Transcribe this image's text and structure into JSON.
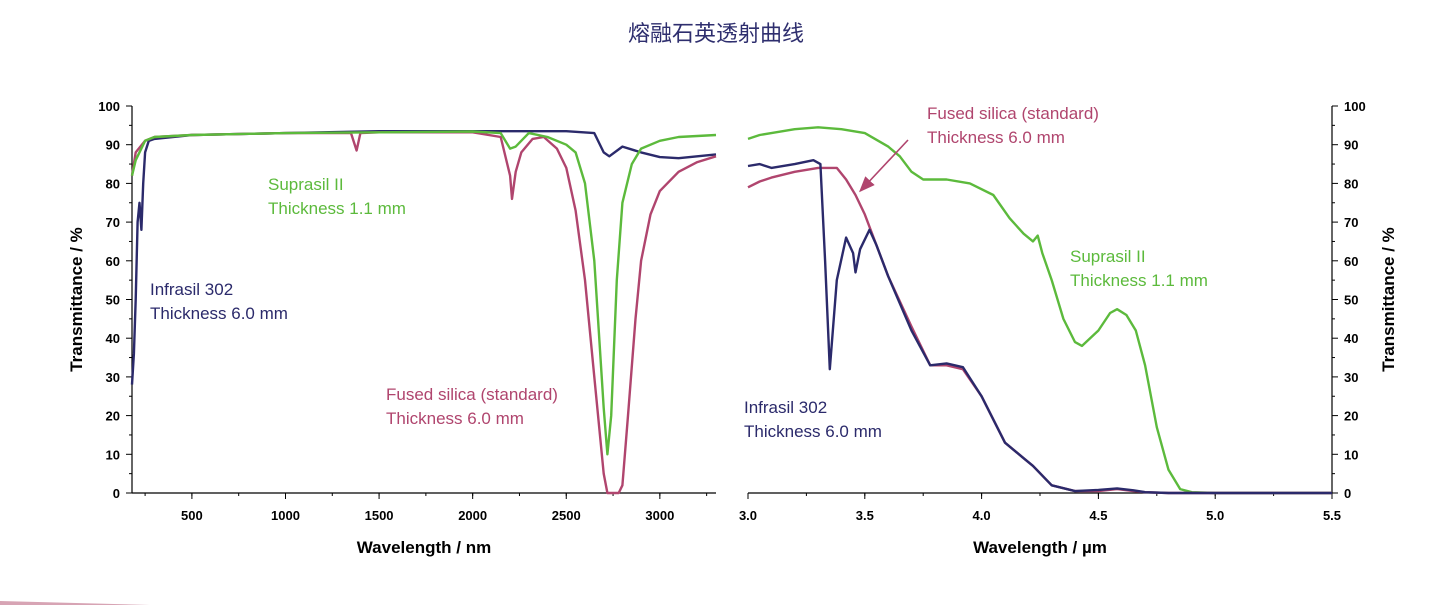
{
  "page": {
    "title": "熔融石英透射曲线"
  },
  "colors": {
    "infrasil": "#2b2a6b",
    "fused": "#b0456e",
    "suprasil": "#5cba3c",
    "decor": "#d7a4b4"
  },
  "chart_data": [
    {
      "type": "line",
      "xlabel": "Wavelength / nm",
      "ylabel": "Transmittance / %",
      "xlim": [
        180,
        3300
      ],
      "ylim": [
        0,
        100
      ],
      "xticks": [
        "500",
        "1000",
        "1500",
        "2000",
        "2500",
        "3000"
      ],
      "yticks": [
        "0",
        "10",
        "20",
        "30",
        "40",
        "50",
        "60",
        "70",
        "80",
        "90",
        "100"
      ],
      "grid": false,
      "series": [
        {
          "name": "Infrasil 302",
          "label": "Thickness 6.0 mm",
          "color": "#2b2a6b",
          "points": [
            [
              180,
              28
            ],
            [
              190,
              36
            ],
            [
              200,
              50
            ],
            [
              210,
              70
            ],
            [
              220,
              75
            ],
            [
              230,
              68
            ],
            [
              240,
              80
            ],
            [
              250,
              88
            ],
            [
              270,
              91
            ],
            [
              300,
              91.5
            ],
            [
              500,
              92.5
            ],
            [
              1000,
              93
            ],
            [
              1500,
              93.5
            ],
            [
              2000,
              93.5
            ],
            [
              2500,
              93.5
            ],
            [
              2650,
              93
            ],
            [
              2700,
              88
            ],
            [
              2730,
              87
            ],
            [
              2800,
              89.5
            ],
            [
              2900,
              88
            ],
            [
              3000,
              86.8
            ],
            [
              3100,
              86.5
            ],
            [
              3200,
              87
            ],
            [
              3300,
              87.5
            ]
          ]
        },
        {
          "name": "Fused silica (standard)",
          "label": "Thickness 6.0 mm",
          "color": "#b0456e",
          "points": [
            [
              180,
              82
            ],
            [
              200,
              88
            ],
            [
              250,
              91
            ],
            [
              300,
              92
            ],
            [
              500,
              92.5
            ],
            [
              1000,
              93
            ],
            [
              1350,
              93
            ],
            [
              1380,
              88.5
            ],
            [
              1400,
              93
            ],
            [
              1500,
              93.2
            ],
            [
              2000,
              93.2
            ],
            [
              2150,
              92
            ],
            [
              2200,
              82
            ],
            [
              2210,
              76
            ],
            [
              2230,
              83
            ],
            [
              2260,
              88
            ],
            [
              2320,
              91.5
            ],
            [
              2380,
              92
            ],
            [
              2450,
              89
            ],
            [
              2500,
              84
            ],
            [
              2550,
              73
            ],
            [
              2600,
              55
            ],
            [
              2650,
              30
            ],
            [
              2700,
              5
            ],
            [
              2720,
              0
            ],
            [
              2780,
              0
            ],
            [
              2800,
              2
            ],
            [
              2830,
              20
            ],
            [
              2870,
              45
            ],
            [
              2900,
              60
            ],
            [
              2950,
              72
            ],
            [
              3000,
              78
            ],
            [
              3100,
              83
            ],
            [
              3200,
              85.5
            ],
            [
              3300,
              87
            ]
          ]
        },
        {
          "name": "Suprasil II",
          "label": "Thickness 1.1 mm",
          "color": "#5cba3c",
          "points": [
            [
              180,
              82
            ],
            [
              200,
              86
            ],
            [
              250,
              91
            ],
            [
              300,
              92
            ],
            [
              500,
              92.5
            ],
            [
              1000,
              93
            ],
            [
              1500,
              93.2
            ],
            [
              2000,
              93.4
            ],
            [
              2150,
              93
            ],
            [
              2200,
              89
            ],
            [
              2230,
              89.5
            ],
            [
              2300,
              93
            ],
            [
              2400,
              92
            ],
            [
              2500,
              90
            ],
            [
              2550,
              88
            ],
            [
              2600,
              80
            ],
            [
              2650,
              60
            ],
            [
              2700,
              22
            ],
            [
              2720,
              10
            ],
            [
              2740,
              20
            ],
            [
              2770,
              55
            ],
            [
              2800,
              75
            ],
            [
              2850,
              85
            ],
            [
              2900,
              89
            ],
            [
              3000,
              91
            ],
            [
              3100,
              92
            ],
            [
              3300,
              92.5
            ]
          ]
        }
      ],
      "annotations": [
        {
          "series": "Suprasil II",
          "lines": [
            "Suprasil II",
            "Thickness 1.1 mm"
          ]
        },
        {
          "series": "Infrasil 302",
          "lines": [
            "Infrasil 302",
            "Thickness 6.0 mm"
          ]
        },
        {
          "series": "Fused silica (standard)",
          "lines": [
            "Fused silica (standard)",
            "Thickness 6.0 mm"
          ]
        }
      ]
    },
    {
      "type": "line",
      "xlabel": "Wavelength / µm",
      "ylabel": "Transmittance / %",
      "xlim": [
        3.0,
        5.5
      ],
      "ylim": [
        0,
        100
      ],
      "xticks": [
        "3.0",
        "3.5",
        "4.0",
        "4.5",
        "5.0",
        "5.5"
      ],
      "yticks": [
        "0",
        "10",
        "20",
        "30",
        "40",
        "50",
        "60",
        "70",
        "80",
        "90",
        "100"
      ],
      "grid": false,
      "series": [
        {
          "name": "Suprasil II",
          "label": "Thickness 1.1 mm",
          "color": "#5cba3c",
          "points": [
            [
              3.0,
              91.5
            ],
            [
              3.05,
              92.5
            ],
            [
              3.1,
              93
            ],
            [
              3.2,
              94
            ],
            [
              3.3,
              94.5
            ],
            [
              3.4,
              94
            ],
            [
              3.5,
              93
            ],
            [
              3.6,
              89.5
            ],
            [
              3.65,
              87
            ],
            [
              3.7,
              83
            ],
            [
              3.75,
              81
            ],
            [
              3.85,
              81
            ],
            [
              3.95,
              80
            ],
            [
              4.05,
              77
            ],
            [
              4.12,
              71
            ],
            [
              4.18,
              67
            ],
            [
              4.22,
              65
            ],
            [
              4.24,
              66.5
            ],
            [
              4.26,
              62
            ],
            [
              4.3,
              55
            ],
            [
              4.35,
              45
            ],
            [
              4.4,
              39
            ],
            [
              4.43,
              38
            ],
            [
              4.5,
              42
            ],
            [
              4.55,
              46.5
            ],
            [
              4.58,
              47.5
            ],
            [
              4.62,
              46
            ],
            [
              4.66,
              42
            ],
            [
              4.7,
              33
            ],
            [
              4.75,
              17
            ],
            [
              4.8,
              6
            ],
            [
              4.85,
              1
            ],
            [
              4.9,
              0.2
            ],
            [
              5.0,
              0
            ],
            [
              5.5,
              0
            ]
          ]
        },
        {
          "name": "Fused silica (standard)",
          "label": "Thickness 6.0 mm",
          "color": "#b0456e",
          "points": [
            [
              3.0,
              79
            ],
            [
              3.05,
              80.5
            ],
            [
              3.1,
              81.5
            ],
            [
              3.2,
              83
            ],
            [
              3.3,
              84
            ],
            [
              3.38,
              84
            ],
            [
              3.42,
              81
            ],
            [
              3.46,
              77
            ],
            [
              3.5,
              72
            ],
            [
              3.55,
              64
            ],
            [
              3.6,
              56
            ],
            [
              3.7,
              43
            ],
            [
              3.78,
              33
            ],
            [
              3.85,
              33
            ],
            [
              3.92,
              32
            ],
            [
              4.0,
              25
            ],
            [
              4.1,
              13
            ],
            [
              4.18,
              9
            ],
            [
              4.22,
              7
            ],
            [
              4.3,
              2
            ],
            [
              4.4,
              0.5
            ],
            [
              4.5,
              0.5
            ],
            [
              4.58,
              1
            ],
            [
              4.65,
              0.5
            ],
            [
              4.7,
              0.2
            ],
            [
              4.8,
              0
            ],
            [
              5.5,
              0
            ]
          ]
        },
        {
          "name": "Infrasil 302",
          "label": "Thickness 6.0 mm",
          "color": "#2b2a6b",
          "points": [
            [
              3.0,
              84.5
            ],
            [
              3.05,
              85
            ],
            [
              3.1,
              84
            ],
            [
              3.2,
              85
            ],
            [
              3.28,
              86
            ],
            [
              3.31,
              85
            ],
            [
              3.33,
              60
            ],
            [
              3.35,
              32
            ],
            [
              3.38,
              55
            ],
            [
              3.42,
              66
            ],
            [
              3.45,
              62
            ],
            [
              3.46,
              57
            ],
            [
              3.48,
              63
            ],
            [
              3.52,
              68
            ],
            [
              3.55,
              64
            ],
            [
              3.6,
              56
            ],
            [
              3.7,
              42
            ],
            [
              3.78,
              33
            ],
            [
              3.85,
              33.5
            ],
            [
              3.92,
              32.5
            ],
            [
              4.0,
              25
            ],
            [
              4.1,
              13
            ],
            [
              4.18,
              9
            ],
            [
              4.22,
              7
            ],
            [
              4.3,
              2
            ],
            [
              4.4,
              0.5
            ],
            [
              4.5,
              0.8
            ],
            [
              4.58,
              1.2
            ],
            [
              4.65,
              0.7
            ],
            [
              4.7,
              0.2
            ],
            [
              4.8,
              0
            ],
            [
              5.5,
              0
            ]
          ]
        }
      ],
      "annotations": [
        {
          "series": "Fused silica (standard)",
          "lines": [
            "Fused silica (standard)",
            "Thickness 6.0 mm"
          ],
          "pointer_to": [
            3.48,
            78
          ]
        },
        {
          "series": "Suprasil II",
          "lines": [
            "Suprasil II",
            "Thickness 1.1 mm"
          ]
        },
        {
          "series": "Infrasil 302",
          "lines": [
            "Infrasil 302",
            "Thickness 6.0 mm"
          ]
        }
      ]
    }
  ]
}
